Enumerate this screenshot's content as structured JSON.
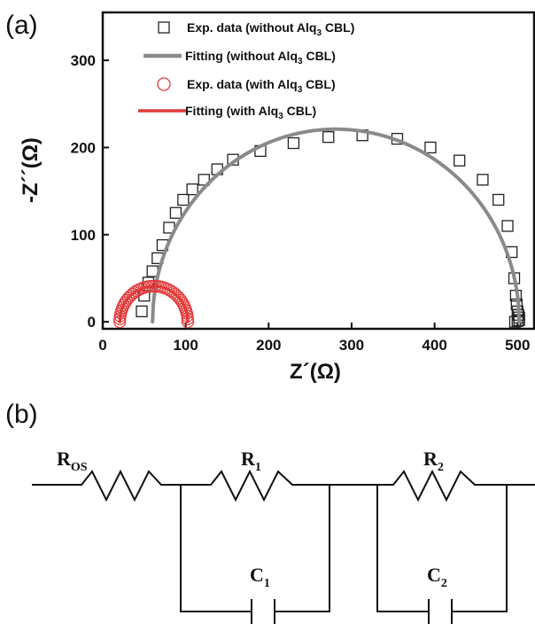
{
  "panel_a_label": "(a)",
  "panel_b_label": "(b)",
  "chart_data": {
    "type": "scatter",
    "title": "",
    "xlabel": "Z´(Ω)",
    "ylabel": "-Z´´(Ω)",
    "xlim": [
      0,
      520
    ],
    "ylim": [
      -8,
      355
    ],
    "xticks": [
      0,
      100,
      200,
      300,
      400,
      500
    ],
    "yticks": [
      0,
      100,
      200,
      300
    ],
    "xtick_labels": [
      "0",
      "100",
      "200",
      "300",
      "400",
      "500"
    ],
    "ytick_labels": [
      "0",
      "100",
      "200",
      "300"
    ],
    "grid": false,
    "legend_position": "top",
    "legend": [
      {
        "text": "Exp. data (without Alq",
        "sub": "3",
        "tail": " CBL)",
        "marker": "square",
        "color": "#222222"
      },
      {
        "text": "Fitting (without Alq",
        "sub": "3",
        "tail": " CBL)",
        "marker": "line",
        "color": "#8a8a8a"
      },
      {
        "text": "Exp. data (with Alq",
        "sub": "3",
        "tail": " CBL)",
        "marker": "circle",
        "color": "#e23a3a"
      },
      {
        "text": "Fitting (with Alq",
        "sub": "3",
        "tail": " CBL)",
        "marker": "line",
        "color": "#e23a3a"
      }
    ],
    "series": [
      {
        "name": "Exp. data (without Alq3 CBL)",
        "kind": "scatter",
        "marker": "square",
        "color": "#222222",
        "x": [
          47,
          50,
          55,
          60,
          66,
          72,
          80,
          88,
          97,
          108,
          122,
          138,
          157,
          190,
          230,
          272,
          313,
          355,
          395,
          430,
          458,
          477,
          488,
          493,
          496,
          498,
          499,
          500,
          501,
          502,
          502,
          500,
          497
        ],
        "y": [
          12,
          30,
          45,
          58,
          73,
          88,
          108,
          125,
          140,
          152,
          163,
          175,
          186,
          196,
          205,
          212,
          214,
          210,
          200,
          185,
          163,
          140,
          110,
          80,
          50,
          30,
          20,
          12,
          8,
          5,
          2,
          1,
          0
        ]
      },
      {
        "name": "Fitting (without Alq3 CBL)",
        "kind": "line",
        "color": "#8a8a8a",
        "center": [
          281,
          0
        ],
        "radius": 221,
        "x_start": 60,
        "x_end": 502
      },
      {
        "name": "Exp. data (with Alq3 CBL)",
        "kind": "scatter",
        "marker": "circle",
        "color": "#e23a3a",
        "center": [
          61.5,
          0
        ],
        "radius": 41,
        "count": 40
      },
      {
        "name": "Fitting (with Alq3 CBL)",
        "kind": "line",
        "color": "#e23a3a",
        "center": [
          61.5,
          0
        ],
        "radius": 41,
        "x_start": 20.5,
        "x_end": 102.5
      }
    ]
  },
  "circuit": {
    "r_os_label": "R",
    "r_os_sub": "OS",
    "r1_label": "R",
    "r1_sub": "1",
    "r2_label": "R",
    "r2_sub": "2",
    "c1_label": "C",
    "c1_sub": "1",
    "c2_label": "C",
    "c2_sub": "2"
  }
}
